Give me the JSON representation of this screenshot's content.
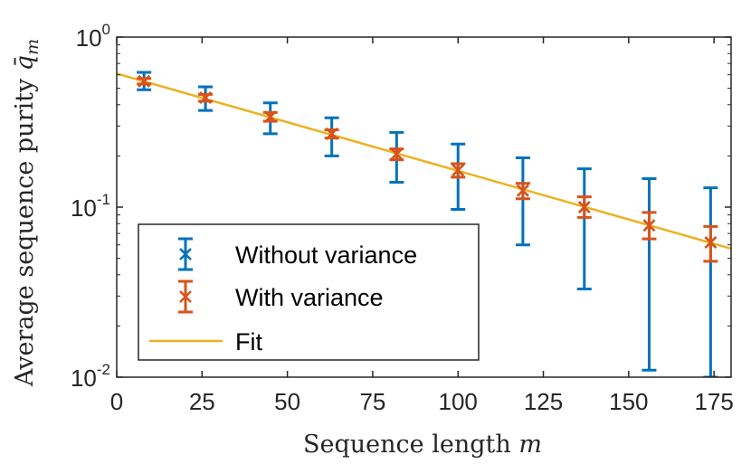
{
  "chart_data": {
    "type": "scatter",
    "title": "",
    "xlabel": "Sequence length m",
    "ylabel": "Average sequence purity q̄m",
    "xscale": "linear",
    "yscale": "log",
    "xlim": [
      0,
      180
    ],
    "ylim": [
      0.01,
      1
    ],
    "xticks": [
      0,
      25,
      50,
      75,
      100,
      125,
      150,
      175
    ],
    "yticks": [
      {
        "value": 1,
        "base": "10",
        "exp": "0"
      },
      {
        "value": 0.1,
        "base": "10",
        "exp": "-1"
      },
      {
        "value": 0.01,
        "base": "10",
        "exp": "-2"
      }
    ],
    "grid": false,
    "legend_position": "bottom-left",
    "colors": {
      "without": "#0072BD",
      "with": "#D95319",
      "fit": "#EDB120",
      "axes": "#262626"
    },
    "series": [
      {
        "name": "Without variance",
        "key": "without",
        "marker": "x",
        "x": [
          8,
          26,
          45,
          63,
          82,
          100,
          119,
          137,
          156,
          174
        ],
        "y": [
          0.55,
          0.44,
          0.34,
          0.27,
          0.205,
          0.165,
          0.125,
          0.1,
          0.078,
          0.062
        ],
        "lower": [
          0.49,
          0.37,
          0.27,
          0.2,
          0.14,
          0.097,
          0.06,
          0.033,
          0.011,
          0.01
        ],
        "upper": [
          0.62,
          0.51,
          0.41,
          0.335,
          0.275,
          0.235,
          0.195,
          0.168,
          0.147,
          0.13
        ]
      },
      {
        "name": "With variance",
        "key": "with",
        "marker": "x",
        "x": [
          8,
          26,
          45,
          63,
          82,
          100,
          119,
          137,
          156,
          174
        ],
        "y": [
          0.55,
          0.44,
          0.34,
          0.27,
          0.205,
          0.165,
          0.125,
          0.1,
          0.078,
          0.062
        ],
        "lower": [
          0.53,
          0.42,
          0.32,
          0.255,
          0.19,
          0.15,
          0.112,
          0.087,
          0.065,
          0.048
        ],
        "upper": [
          0.57,
          0.46,
          0.36,
          0.285,
          0.22,
          0.18,
          0.138,
          0.115,
          0.093,
          0.077
        ]
      },
      {
        "name": "Fit",
        "key": "fit",
        "type": "line",
        "x": [
          0,
          180
        ],
        "y": [
          0.61,
          0.057
        ]
      }
    ]
  }
}
